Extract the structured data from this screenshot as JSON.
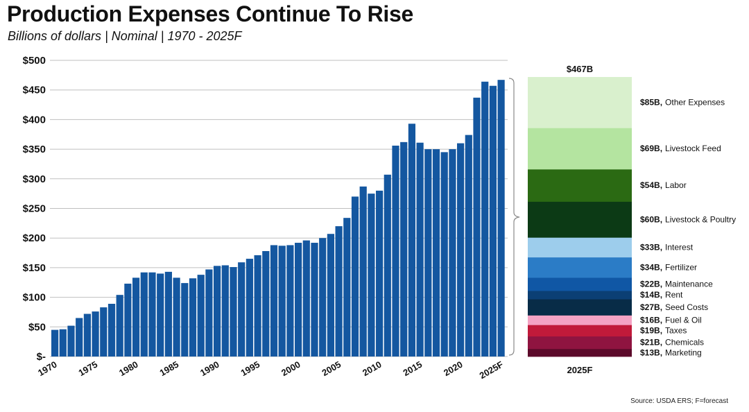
{
  "title": "Production Expenses Continue To Rise",
  "subtitle": "Billions of dollars | Nominal | 1970 - 2025F",
  "source": "Source: USDA ERS; F=forecast",
  "colors": {
    "bar": "#1457a0",
    "grid": "#bfbfbf",
    "bracket": "#888888"
  },
  "chart_data": [
    {
      "type": "bar",
      "title": "Production Expenses Continue To Rise",
      "ylabel": "Billions of dollars",
      "ylim": [
        0,
        500
      ],
      "yticks": [
        {
          "value": 0,
          "label": "$-"
        },
        {
          "value": 50,
          "label": "$50"
        },
        {
          "value": 100,
          "label": "$100"
        },
        {
          "value": 150,
          "label": "$150"
        },
        {
          "value": 200,
          "label": "$200"
        },
        {
          "value": 250,
          "label": "$250"
        },
        {
          "value": 300,
          "label": "$300"
        },
        {
          "value": 350,
          "label": "$350"
        },
        {
          "value": 400,
          "label": "$400"
        },
        {
          "value": 450,
          "label": "$450"
        },
        {
          "value": 500,
          "label": "$500"
        }
      ],
      "grid": true,
      "categories": [
        "1970",
        "1971",
        "1972",
        "1973",
        "1974",
        "1975",
        "1976",
        "1977",
        "1978",
        "1979",
        "1980",
        "1981",
        "1982",
        "1983",
        "1984",
        "1985",
        "1986",
        "1987",
        "1988",
        "1989",
        "1990",
        "1991",
        "1992",
        "1993",
        "1994",
        "1995",
        "1996",
        "1997",
        "1998",
        "1999",
        "2000",
        "2001",
        "2002",
        "2003",
        "2004",
        "2005",
        "2006",
        "2007",
        "2008",
        "2009",
        "2010",
        "2011",
        "2012",
        "2013",
        "2014",
        "2015",
        "2016",
        "2017",
        "2018",
        "2019",
        "2020",
        "2021",
        "2022",
        "2023",
        "2024",
        "2025F"
      ],
      "xtick_labels": [
        "1970",
        "1975",
        "1980",
        "1985",
        "1990",
        "1995",
        "2000",
        "2005",
        "2010",
        "2015",
        "2020",
        "2025F"
      ],
      "values": [
        45,
        46,
        52,
        65,
        72,
        76,
        83,
        89,
        104,
        123,
        133,
        142,
        142,
        140,
        143,
        133,
        124,
        132,
        138,
        147,
        153,
        154,
        151,
        159,
        165,
        171,
        178,
        188,
        187,
        188,
        192,
        196,
        192,
        200,
        207,
        220,
        234,
        270,
        287,
        275,
        280,
        307,
        356,
        362,
        393,
        361,
        350,
        350,
        345,
        350,
        360,
        374,
        437,
        464,
        457,
        467
      ]
    },
    {
      "type": "stacked-bar",
      "category": "2025F",
      "total_label": "$467B",
      "segments_bottom_to_top": [
        {
          "value": 13,
          "value_label": "$13B,",
          "name": "Marketing",
          "color": "#5c0a2a"
        },
        {
          "value": 21,
          "value_label": "$21B,",
          "name": "Chemicals",
          "color": "#8f1440"
        },
        {
          "value": 19,
          "value_label": "$19B,",
          "name": "Taxes",
          "color": "#c11a3a"
        },
        {
          "value": 16,
          "value_label": "$16B,",
          "name": "Fuel & Oil",
          "color": "#f4a3c4"
        },
        {
          "value": 27,
          "value_label": "$27B,",
          "name": "Seed Costs",
          "color": "#082c47"
        },
        {
          "value": 14,
          "value_label": "$14B,",
          "name": "Rent",
          "color": "#0b3f74"
        },
        {
          "value": 22,
          "value_label": "$22B,",
          "name": "Maintenance",
          "color": "#1057a5"
        },
        {
          "value": 34,
          "value_label": "$34B,",
          "name": "Fertilizer",
          "color": "#2b7cc6"
        },
        {
          "value": 33,
          "value_label": "$33B,",
          "name": "Interest",
          "color": "#9dcdec"
        },
        {
          "value": 60,
          "value_label": "$60B,",
          "name": "Livestock & Poultry",
          "color": "#0c3a15"
        },
        {
          "value": 54,
          "value_label": "$54B,",
          "name": "Labor",
          "color": "#2b6a13"
        },
        {
          "value": 69,
          "value_label": "$69B,",
          "name": "Livestock Feed",
          "color": "#b4e4a0"
        },
        {
          "value": 85,
          "value_label": "$85B,",
          "name": "Other Expenses",
          "color": "#d9f0cd"
        }
      ]
    }
  ]
}
